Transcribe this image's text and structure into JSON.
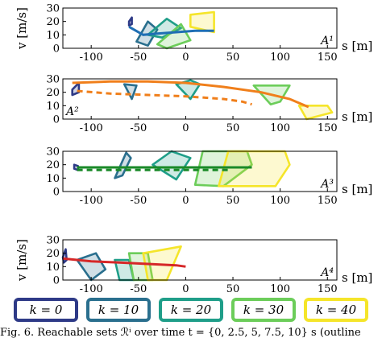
{
  "caption": "Fig. 6.   Reachable sets ℛ̂ⁱ over time t = {0, 2.5, 5, 7.5, 10} s (outline",
  "legend": [
    {
      "label": "k = 0",
      "color": "#2e3a87"
    },
    {
      "label": "k = 10",
      "color": "#2a6f8e"
    },
    {
      "label": "k = 20",
      "color": "#1f9e89"
    },
    {
      "label": "k = 30",
      "color": "#6ccd5a"
    },
    {
      "label": "k = 40",
      "color": "#f5e52a"
    }
  ],
  "chart_data": [
    {
      "type": "area",
      "panel_label": "A¹",
      "xlabel": "s [m]",
      "ylabel": "v [m/s]",
      "xlim": [
        -130,
        160
      ],
      "ylim": [
        0,
        30
      ],
      "xticks": [
        -100,
        -50,
        0,
        50,
        100,
        150
      ],
      "yticks": [
        0,
        10,
        20,
        30
      ],
      "trajectories": [
        {
          "color": "#1f6fb4",
          "style": "solid",
          "points": [
            [
              -60,
              16
            ],
            [
              -45,
              10
            ],
            [
              -30,
              11
            ],
            [
              -10,
              12
            ],
            [
              10,
              13
            ],
            [
              30,
              13
            ]
          ]
        }
      ],
      "reachable_sets": [
        {
          "k": 0,
          "color": "#2e3a87",
          "polygon": [
            [
              -60,
              20
            ],
            [
              -57,
              23
            ],
            [
              -57,
              18
            ],
            [
              -60,
              17
            ]
          ]
        },
        {
          "k": 10,
          "color": "#2a6f8e",
          "polygon": [
            [
              -52,
              5
            ],
            [
              -40,
              20
            ],
            [
              -30,
              14
            ],
            [
              -40,
              2
            ]
          ]
        },
        {
          "k": 20,
          "color": "#1f9e89",
          "polygon": [
            [
              -40,
              10
            ],
            [
              -20,
              22
            ],
            [
              -5,
              15
            ],
            [
              -25,
              8
            ]
          ]
        },
        {
          "k": 30,
          "color": "#6ccd5a",
          "polygon": [
            [
              -30,
              3
            ],
            [
              -5,
              18
            ],
            [
              5,
              6
            ],
            [
              -20,
              0
            ]
          ]
        },
        {
          "k": 40,
          "color": "#f5e52a",
          "polygon": [
            [
              5,
              16
            ],
            [
              5,
              25
            ],
            [
              30,
              27
            ],
            [
              30,
              12
            ]
          ]
        }
      ]
    },
    {
      "type": "area",
      "panel_label": "A²",
      "xlabel": "s [m]",
      "ylabel": "",
      "xlim": [
        -130,
        160
      ],
      "ylim": [
        0,
        30
      ],
      "xticks": [
        -100,
        -50,
        0,
        50,
        100,
        150
      ],
      "yticks": [
        0,
        10,
        20,
        30
      ],
      "trajectories": [
        {
          "color": "#f07f1b",
          "style": "solid",
          "points": [
            [
              -120,
              27
            ],
            [
              -80,
              28
            ],
            [
              -40,
              28
            ],
            [
              0,
              27
            ],
            [
              40,
              24
            ],
            [
              80,
              20
            ],
            [
              110,
              15
            ],
            [
              130,
              9
            ]
          ]
        },
        {
          "color": "#f07f1b",
          "style": "dashed",
          "points": [
            [
              -115,
              21
            ],
            [
              -80,
              19
            ],
            [
              -40,
              18
            ],
            [
              0,
              17
            ],
            [
              40,
              15
            ],
            [
              60,
              13
            ],
            [
              70,
              11
            ]
          ]
        }
      ],
      "reachable_sets": [
        {
          "k": 0,
          "color": "#2e3a87",
          "polygon": [
            [
              -120,
              22
            ],
            [
              -113,
              27
            ],
            [
              -113,
              20
            ],
            [
              -120,
              18
            ]
          ]
        },
        {
          "k": 10,
          "color": "#2a6f8e",
          "polygon": [
            [
              -65,
              26
            ],
            [
              -52,
              25
            ],
            [
              -57,
              15
            ]
          ]
        },
        {
          "k": 20,
          "color": "#1f9e89",
          "polygon": [
            [
              -10,
              26
            ],
            [
              5,
              29
            ],
            [
              15,
              26
            ],
            [
              5,
              15
            ]
          ]
        },
        {
          "k": 30,
          "color": "#6ccd5a",
          "polygon": [
            [
              72,
              25
            ],
            [
              110,
              25
            ],
            [
              100,
              13
            ],
            [
              90,
              11
            ]
          ]
        },
        {
          "k": 40,
          "color": "#f5e52a",
          "polygon": [
            [
              120,
              10
            ],
            [
              128,
              0
            ],
            [
              155,
              5
            ],
            [
              150,
              10
            ]
          ]
        }
      ]
    },
    {
      "type": "area",
      "panel_label": "A³",
      "xlabel": "s [m]",
      "ylabel": "",
      "xlim": [
        -130,
        160
      ],
      "ylim": [
        0,
        30
      ],
      "xticks": [
        -100,
        -50,
        0,
        50,
        100,
        150
      ],
      "yticks": [
        0,
        10,
        20,
        30
      ],
      "trajectories": [
        {
          "color": "#1a8a28",
          "style": "solid",
          "points": [
            [
              -115,
              18
            ],
            [
              -60,
              18
            ],
            [
              0,
              18
            ],
            [
              40,
              18
            ],
            [
              70,
              18
            ]
          ]
        },
        {
          "color": "#1a8a28",
          "style": "dashed",
          "points": [
            [
              -115,
              16
            ],
            [
              -60,
              16
            ],
            [
              -20,
              16
            ],
            [
              20,
              16
            ],
            [
              45,
              16
            ]
          ]
        }
      ],
      "reachable_sets": [
        {
          "k": 0,
          "color": "#2e3a87",
          "polygon": [
            [
              -118,
              20
            ],
            [
              -114,
              19
            ],
            [
              -114,
              16
            ],
            [
              -118,
              17
            ]
          ]
        },
        {
          "k": 10,
          "color": "#2a6f8e",
          "polygon": [
            [
              -75,
              10
            ],
            [
              -63,
              29
            ],
            [
              -58,
              25
            ],
            [
              -67,
              12
            ]
          ]
        },
        {
          "k": 20,
          "color": "#1f9e89",
          "polygon": [
            [
              -35,
              20
            ],
            [
              -15,
              30
            ],
            [
              5,
              25
            ],
            [
              -10,
              9
            ]
          ]
        },
        {
          "k": 30,
          "color": "#6ccd5a",
          "polygon": [
            [
              10,
              5
            ],
            [
              18,
              30
            ],
            [
              65,
              30
            ],
            [
              70,
              20
            ],
            [
              40,
              4
            ]
          ]
        },
        {
          "k": 40,
          "color": "#f5e52a",
          "polygon": [
            [
              35,
              4
            ],
            [
              45,
              30
            ],
            [
              105,
              30
            ],
            [
              110,
              20
            ],
            [
              95,
              4
            ]
          ]
        }
      ]
    },
    {
      "type": "area",
      "panel_label": "A⁴",
      "xlabel": "s [m]",
      "ylabel": "v [m/s]",
      "xlim": [
        -130,
        160
      ],
      "ylim": [
        0,
        30
      ],
      "xticks": [
        -100,
        -50,
        0,
        50,
        100,
        150
      ],
      "yticks": [
        0,
        10,
        20,
        30
      ],
      "trajectories": [
        {
          "color": "#d62728",
          "style": "solid",
          "points": [
            [
              -130,
              16
            ],
            [
              -100,
              14
            ],
            [
              -70,
              13
            ],
            [
              -40,
              12
            ],
            [
              -10,
              11
            ],
            [
              0,
              10
            ]
          ]
        }
      ],
      "reachable_sets": [
        {
          "k": 0,
          "color": "#2e3a87",
          "polygon": [
            [
              -130,
              17
            ],
            [
              -127,
              23
            ],
            [
              -126,
              15
            ],
            [
              -129,
              13
            ]
          ]
        },
        {
          "k": 10,
          "color": "#2a6f8e",
          "polygon": [
            [
              -115,
              15
            ],
            [
              -95,
              20
            ],
            [
              -85,
              8
            ],
            [
              -100,
              0
            ]
          ]
        },
        {
          "k": 20,
          "color": "#1f9e89",
          "polygon": [
            [
              -75,
              15
            ],
            [
              -60,
              15
            ],
            [
              -55,
              0
            ],
            [
              -70,
              0
            ]
          ]
        },
        {
          "k": 30,
          "color": "#6ccd5a",
          "polygon": [
            [
              -60,
              20
            ],
            [
              -40,
              20
            ],
            [
              -35,
              0
            ],
            [
              -55,
              0
            ]
          ]
        },
        {
          "k": 40,
          "color": "#f5e52a",
          "polygon": [
            [
              -45,
              20
            ],
            [
              -5,
              25
            ],
            [
              -20,
              0
            ],
            [
              -40,
              0
            ]
          ]
        }
      ]
    }
  ]
}
